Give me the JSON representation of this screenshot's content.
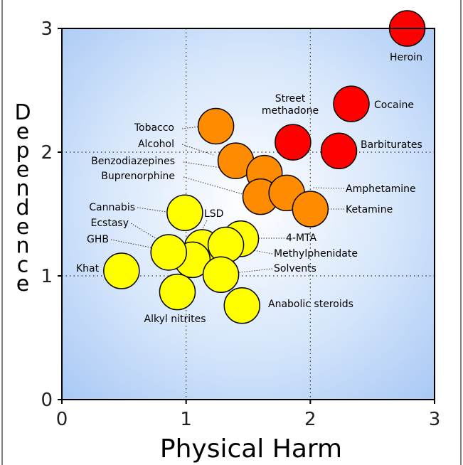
{
  "chart_data": {
    "type": "scatter",
    "xlabel": "Physical Harm",
    "ylabel": "Dependence",
    "xlim": [
      0,
      3
    ],
    "ylim": [
      0,
      3
    ],
    "xticks": [
      "0",
      "1",
      "2",
      "3"
    ],
    "yticks": [
      "0",
      "1",
      "2",
      "3"
    ],
    "grid": true,
    "colors": {
      "red": "#ff0000",
      "orange": "#ff8c00",
      "yellow": "#ffff00"
    },
    "points": [
      {
        "name": "Heroin",
        "x": 2.78,
        "y": 3.0,
        "color": "red"
      },
      {
        "name": "Cocaine",
        "x": 2.33,
        "y": 2.39,
        "color": "red"
      },
      {
        "name": "Street methadone",
        "x": 1.86,
        "y": 2.08,
        "color": "red"
      },
      {
        "name": "Barbiturates",
        "x": 2.23,
        "y": 2.01,
        "color": "red"
      },
      {
        "name": "Tobacco",
        "x": 1.24,
        "y": 2.21,
        "color": "orange"
      },
      {
        "name": "Alcohol",
        "x": 1.4,
        "y": 1.93,
        "color": "orange"
      },
      {
        "name": "Benzodiazepines",
        "x": 1.63,
        "y": 1.83,
        "color": "orange"
      },
      {
        "name": "Buprenorphine",
        "x": 1.6,
        "y": 1.64,
        "color": "orange"
      },
      {
        "name": "Amphetamine",
        "x": 1.81,
        "y": 1.67,
        "color": "orange"
      },
      {
        "name": "Ketamine",
        "x": 2.0,
        "y": 1.54,
        "color": "orange"
      },
      {
        "name": "Cannabis",
        "x": 0.99,
        "y": 1.51,
        "color": "yellow"
      },
      {
        "name": "LSD",
        "x": 1.13,
        "y": 1.23,
        "color": "yellow"
      },
      {
        "name": "Ecstasy",
        "x": 1.05,
        "y": 1.13,
        "color": "yellow"
      },
      {
        "name": "GHB",
        "x": 0.86,
        "y": 1.19,
        "color": "yellow"
      },
      {
        "name": "4-MTA",
        "x": 1.44,
        "y": 1.3,
        "color": "yellow"
      },
      {
        "name": "Methylphenidate",
        "x": 1.32,
        "y": 1.25,
        "color": "yellow"
      },
      {
        "name": "Solvents",
        "x": 1.28,
        "y": 1.01,
        "color": "yellow"
      },
      {
        "name": "Khat",
        "x": 0.48,
        "y": 1.04,
        "color": "yellow"
      },
      {
        "name": "Alkyl nitrites",
        "x": 0.93,
        "y": 0.87,
        "color": "yellow"
      },
      {
        "name": "Anabolic steroids",
        "x": 1.45,
        "y": 0.76,
        "color": "yellow"
      }
    ]
  }
}
